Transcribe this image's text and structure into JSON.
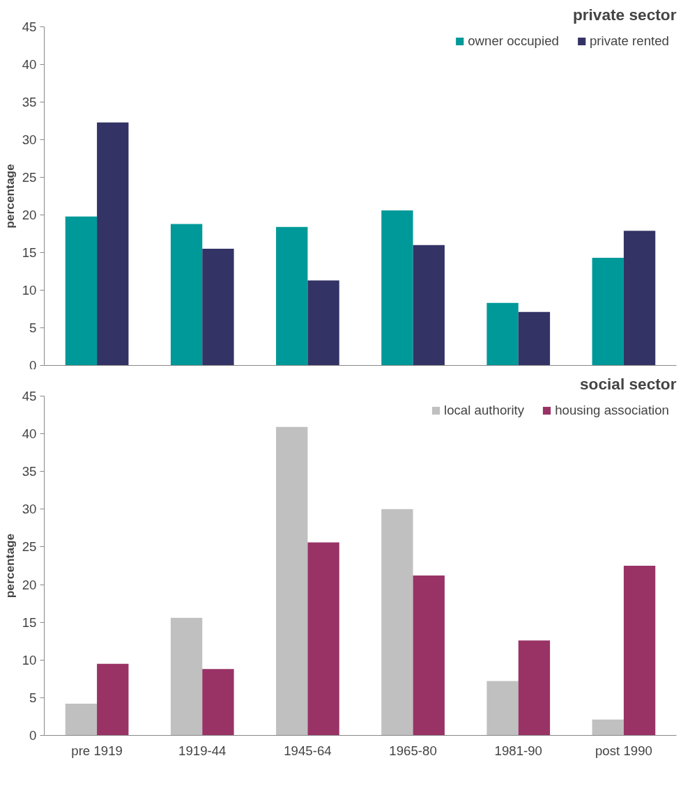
{
  "chart_data": [
    {
      "type": "bar",
      "title": "private sector",
      "ylabel": "percentage",
      "categories": [
        null,
        null,
        null,
        null,
        null,
        null
      ],
      "series": [
        {
          "name": "owner occupied",
          "color": "#009999",
          "values": [
            19.8,
            18.8,
            18.4,
            20.6,
            8.3,
            14.3
          ]
        },
        {
          "name": "private rented",
          "color": "#333366",
          "values": [
            32.3,
            15.5,
            11.3,
            16.0,
            7.1,
            17.9
          ]
        }
      ],
      "ylim": [
        0,
        45
      ],
      "yticks": [
        0,
        5,
        10,
        15,
        20,
        25,
        30,
        35,
        40,
        45
      ],
      "legend": "top right",
      "grid": false
    },
    {
      "type": "bar",
      "title": "social sector",
      "ylabel": "percentage",
      "categories": [
        "pre 1919",
        "1919-44",
        "1945-64",
        "1965-80",
        "1981-90",
        "post 1990"
      ],
      "series": [
        {
          "name": "local authority",
          "color": "#c0c0c0",
          "values": [
            4.2,
            15.6,
            40.9,
            30.0,
            7.2,
            2.1
          ]
        },
        {
          "name": "housing association",
          "color": "#993366",
          "values": [
            9.5,
            8.8,
            25.6,
            21.2,
            12.6,
            22.5
          ]
        }
      ],
      "ylim": [
        0,
        45
      ],
      "yticks": [
        0,
        5,
        10,
        15,
        20,
        25,
        30,
        35,
        40,
        45
      ],
      "legend": "top right",
      "grid": false
    }
  ]
}
